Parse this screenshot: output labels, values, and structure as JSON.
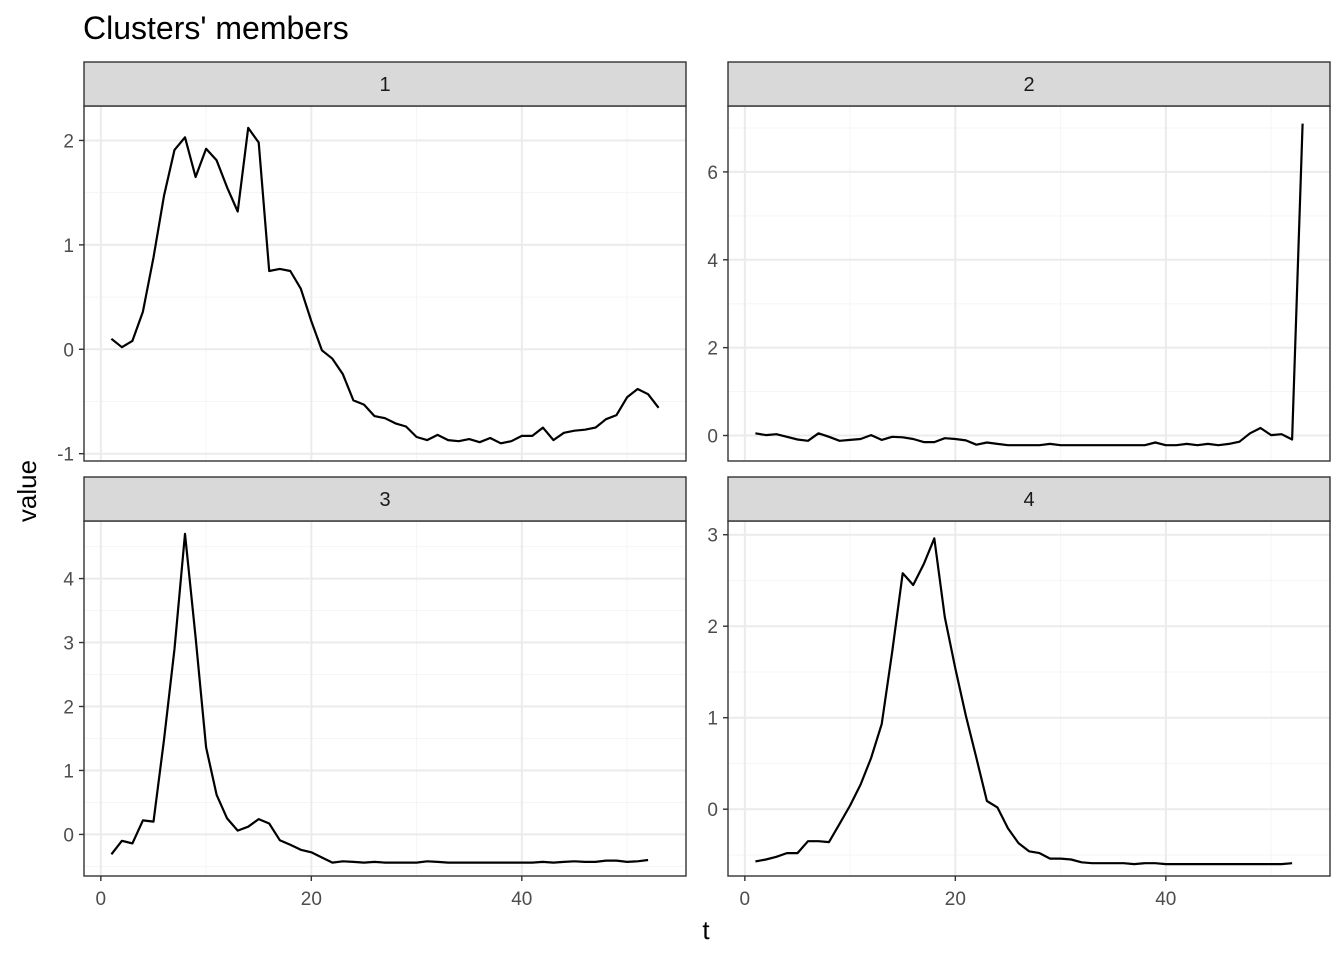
{
  "chart_data": {
    "type": "line",
    "title": "Clusters' members",
    "xlabel": "t",
    "ylabel": "value",
    "grid": true,
    "xlim": [
      -1.6,
      55.6
    ],
    "x_ticks": [
      0,
      20,
      40
    ],
    "panels": [
      {
        "strip_label": "1",
        "ylim": [
          -1.07,
          2.33
        ],
        "y_ticks": [
          -1,
          0,
          1,
          2
        ],
        "x": [
          1,
          2,
          3,
          4,
          5,
          6,
          7,
          8,
          9,
          10,
          11,
          12,
          13,
          14,
          15,
          16,
          17,
          18,
          19,
          20,
          21,
          22,
          23,
          24,
          25,
          26,
          27,
          28,
          29,
          30,
          31,
          32,
          33,
          34,
          35,
          36,
          37,
          38,
          39,
          40,
          41,
          42,
          43,
          44,
          45,
          46,
          47,
          48,
          49,
          50,
          51,
          52,
          53
        ],
        "values": [
          0.1,
          0.02,
          0.08,
          0.36,
          0.88,
          1.47,
          1.91,
          2.03,
          1.65,
          1.92,
          1.81,
          1.55,
          1.32,
          2.12,
          1.98,
          0.75,
          0.77,
          0.75,
          0.58,
          0.27,
          -0.01,
          -0.09,
          -0.24,
          -0.49,
          -0.53,
          -0.64,
          -0.66,
          -0.71,
          -0.74,
          -0.84,
          -0.87,
          -0.82,
          -0.87,
          -0.88,
          -0.86,
          -0.89,
          -0.85,
          -0.9,
          -0.88,
          -0.83,
          -0.83,
          -0.75,
          -0.87,
          -0.8,
          -0.78,
          -0.77,
          -0.75,
          -0.67,
          -0.63,
          -0.46,
          -0.38,
          -0.43,
          -0.56
        ]
      },
      {
        "strip_label": "2",
        "ylim": [
          -0.58,
          7.5
        ],
        "y_ticks": [
          0,
          2,
          4,
          6
        ],
        "x": [
          1,
          2,
          3,
          4,
          5,
          6,
          7,
          8,
          9,
          10,
          11,
          12,
          13,
          14,
          15,
          16,
          17,
          18,
          19,
          20,
          21,
          22,
          23,
          24,
          25,
          26,
          27,
          28,
          29,
          30,
          31,
          32,
          33,
          34,
          35,
          36,
          37,
          38,
          39,
          40,
          41,
          42,
          43,
          44,
          45,
          46,
          47,
          48,
          49,
          50,
          51,
          52,
          53
        ],
        "values": [
          0.05,
          0.01,
          0.03,
          -0.03,
          -0.09,
          -0.12,
          0.05,
          -0.03,
          -0.12,
          -0.1,
          -0.08,
          0.01,
          -0.1,
          -0.03,
          -0.04,
          -0.08,
          -0.15,
          -0.15,
          -0.06,
          -0.08,
          -0.11,
          -0.21,
          -0.16,
          -0.19,
          -0.22,
          -0.22,
          -0.22,
          -0.22,
          -0.19,
          -0.22,
          -0.22,
          -0.22,
          -0.22,
          -0.22,
          -0.22,
          -0.22,
          -0.22,
          -0.22,
          -0.16,
          -0.22,
          -0.22,
          -0.19,
          -0.22,
          -0.19,
          -0.22,
          -0.19,
          -0.14,
          0.05,
          0.17,
          0.01,
          0.03,
          -0.09,
          7.1
        ]
      },
      {
        "strip_label": "3",
        "ylim": [
          -0.65,
          4.9
        ],
        "y_ticks": [
          0,
          1,
          2,
          3,
          4
        ],
        "x": [
          1,
          2,
          3,
          4,
          5,
          6,
          7,
          8,
          9,
          10,
          11,
          12,
          13,
          14,
          15,
          16,
          17,
          18,
          19,
          20,
          21,
          22,
          23,
          24,
          25,
          26,
          27,
          28,
          29,
          30,
          31,
          32,
          33,
          34,
          35,
          36,
          37,
          38,
          39,
          40,
          41,
          42,
          43,
          44,
          45,
          46,
          47,
          48,
          49,
          50,
          51,
          52
        ],
        "values": [
          -0.31,
          -0.1,
          -0.14,
          0.22,
          0.2,
          1.48,
          2.9,
          4.7,
          3.08,
          1.36,
          0.62,
          0.25,
          0.06,
          0.12,
          0.24,
          0.17,
          -0.09,
          -0.16,
          -0.24,
          -0.28,
          -0.36,
          -0.44,
          -0.42,
          -0.43,
          -0.44,
          -0.43,
          -0.44,
          -0.44,
          -0.44,
          -0.44,
          -0.42,
          -0.43,
          -0.44,
          -0.44,
          -0.44,
          -0.44,
          -0.44,
          -0.44,
          -0.44,
          -0.44,
          -0.44,
          -0.43,
          -0.44,
          -0.43,
          -0.42,
          -0.43,
          -0.43,
          -0.41,
          -0.41,
          -0.43,
          -0.42,
          -0.4
        ]
      },
      {
        "strip_label": "4",
        "ylim": [
          -0.73,
          3.15
        ],
        "y_ticks": [
          0,
          1,
          2,
          3
        ],
        "x": [
          1,
          2,
          3,
          4,
          5,
          6,
          7,
          8,
          9,
          10,
          11,
          12,
          13,
          14,
          15,
          16,
          17,
          18,
          19,
          20,
          21,
          22,
          23,
          24,
          25,
          26,
          27,
          28,
          29,
          30,
          31,
          32,
          33,
          34,
          35,
          36,
          37,
          38,
          39,
          40,
          41,
          42,
          43,
          44,
          45,
          46,
          47,
          48,
          49,
          50,
          51,
          52
        ],
        "values": [
          -0.57,
          -0.55,
          -0.52,
          -0.48,
          -0.48,
          -0.35,
          -0.35,
          -0.36,
          -0.16,
          0.04,
          0.27,
          0.56,
          0.93,
          1.72,
          2.58,
          2.45,
          2.68,
          2.96,
          2.1,
          1.54,
          1.02,
          0.56,
          0.09,
          0.02,
          -0.21,
          -0.37,
          -0.46,
          -0.48,
          -0.54,
          -0.54,
          -0.55,
          -0.58,
          -0.59,
          -0.59,
          -0.59,
          -0.59,
          -0.6,
          -0.59,
          -0.59,
          -0.6,
          -0.6,
          -0.6,
          -0.6,
          -0.6,
          -0.6,
          -0.6,
          -0.6,
          -0.6,
          -0.6,
          -0.6,
          -0.6,
          -0.59
        ]
      }
    ]
  }
}
